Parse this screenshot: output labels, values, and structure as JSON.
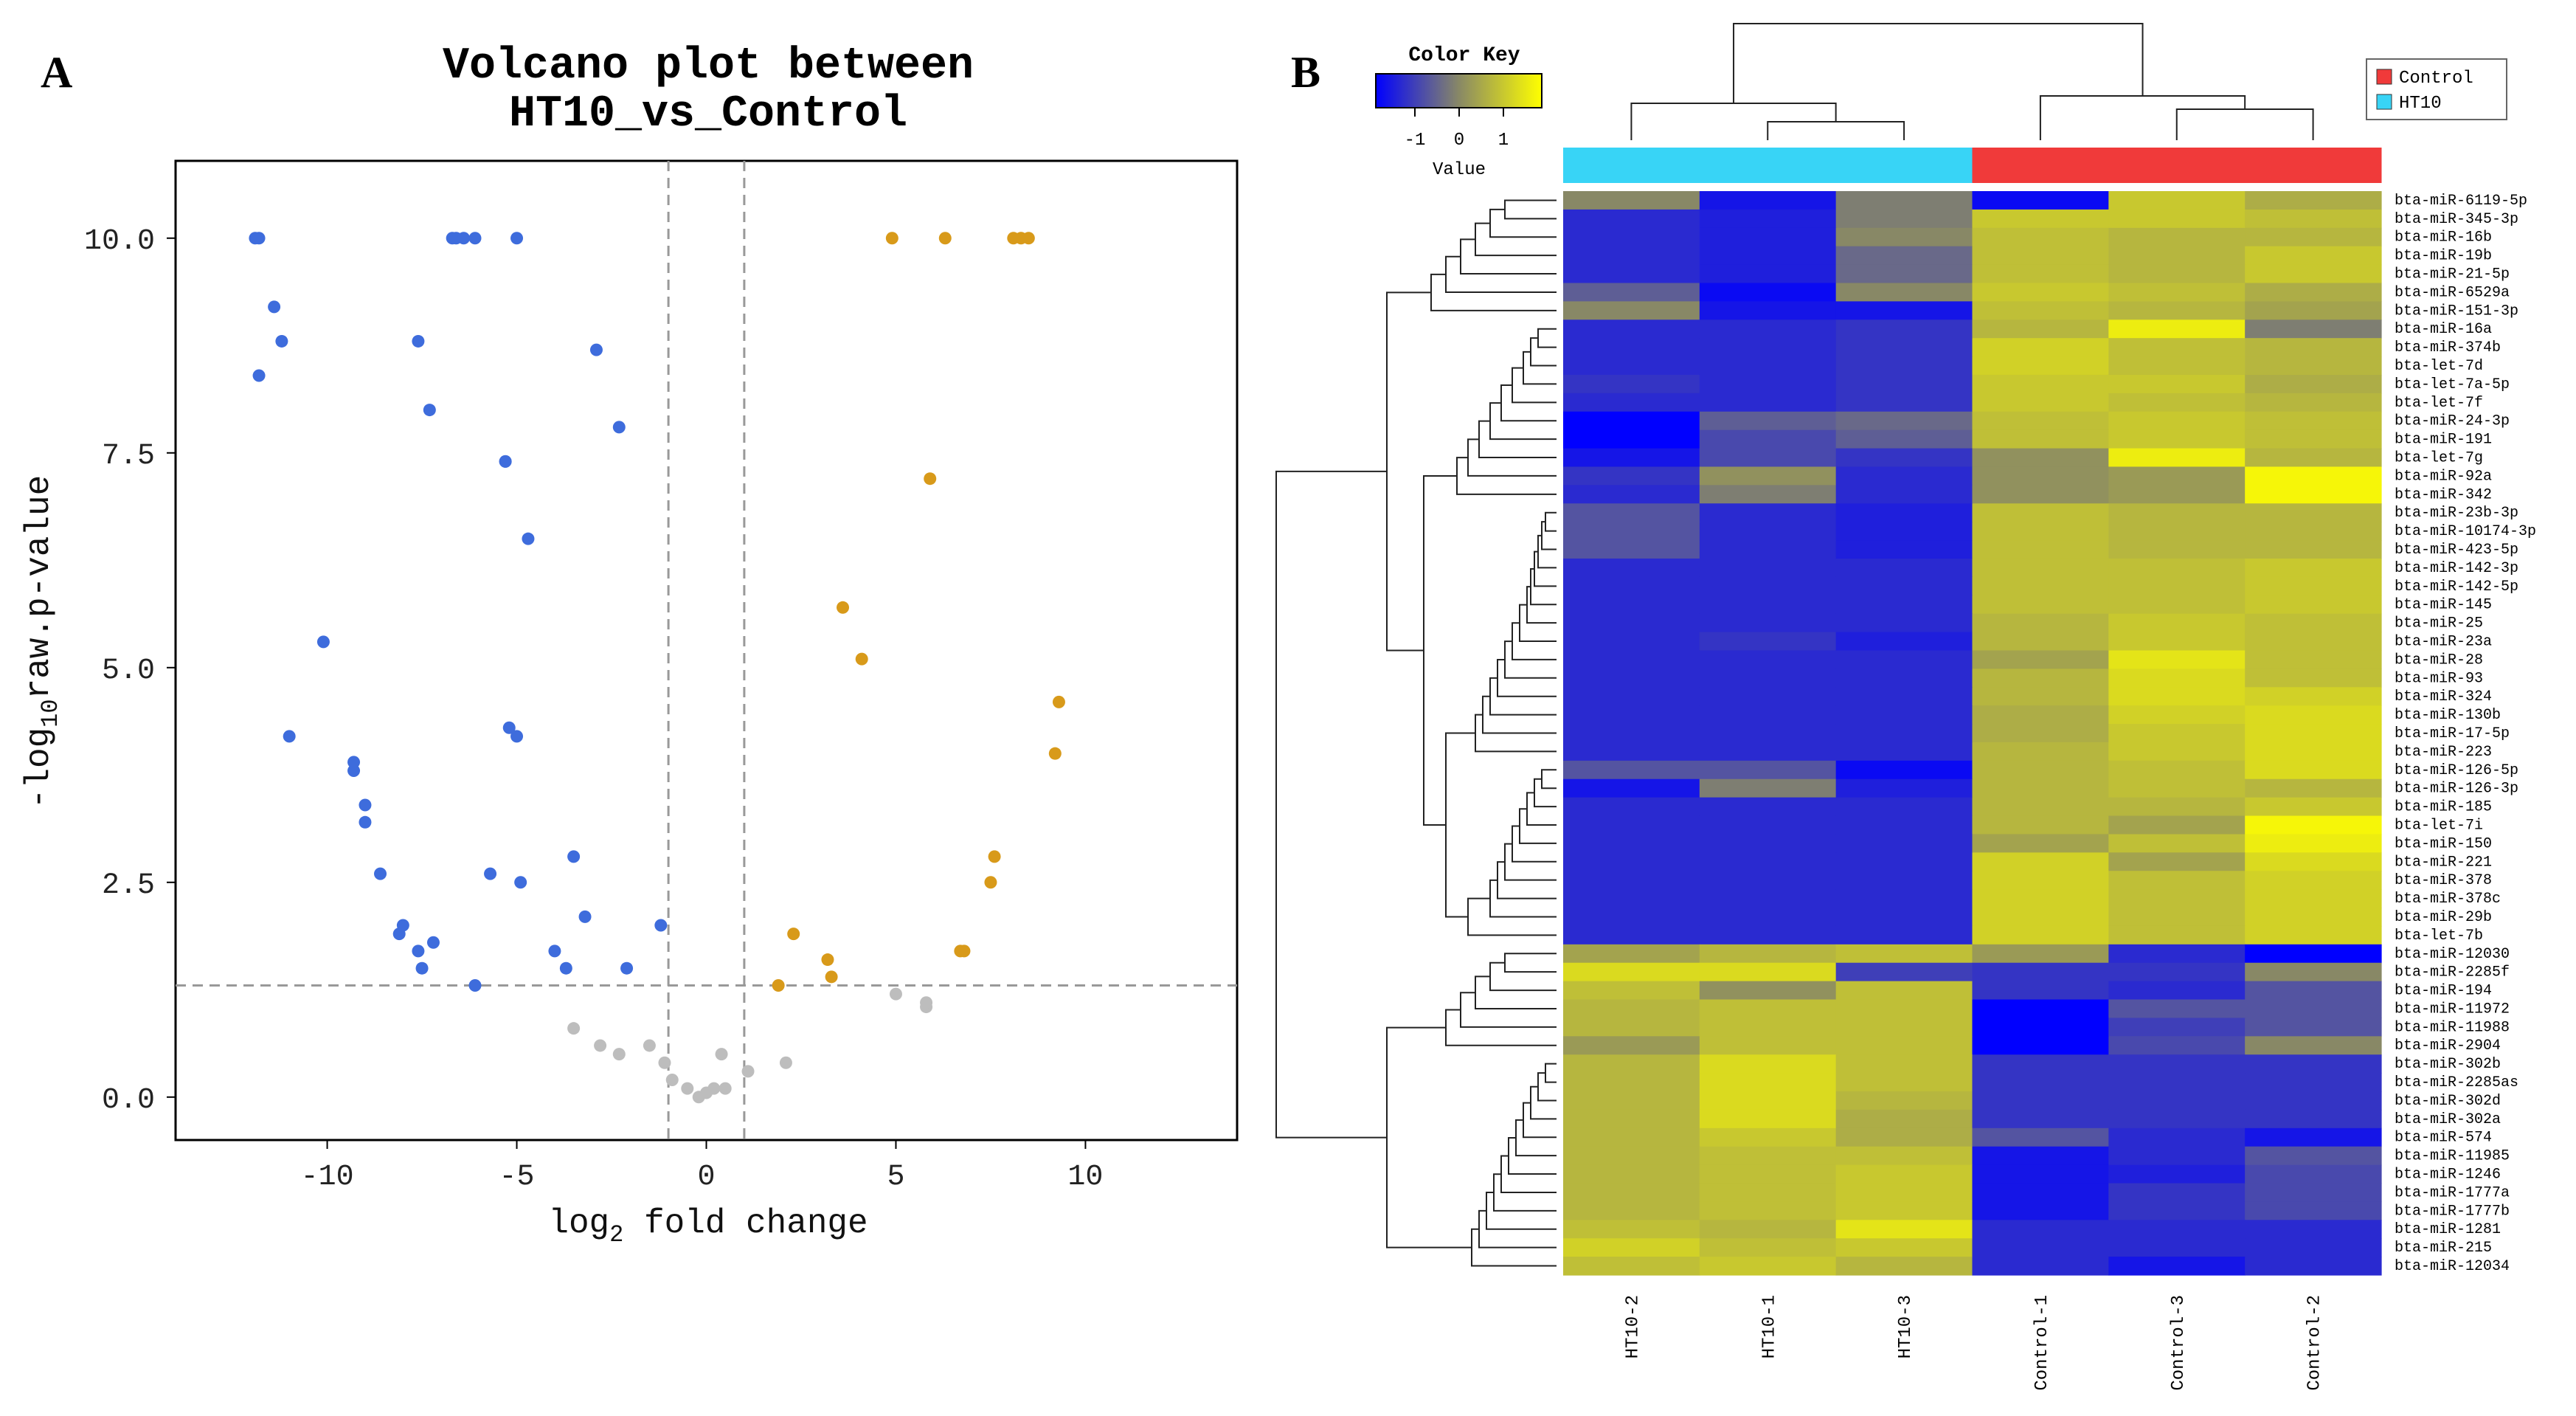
{
  "colors": {
    "down": "#3e6cdc",
    "up": "#d89a1a",
    "ns": "#bdbdbd",
    "control": "#f03a3a",
    "ht10": "#38d4f6",
    "heat_low": "#0000ff",
    "heat_mid": "#888866",
    "heat_high": "#ffff00"
  },
  "panel_a": {
    "letter": "A"
  },
  "panel_b": {
    "letter": "B"
  },
  "chart_data": [
    {
      "type": "scatter",
      "title_line1": "Volcano plot between",
      "title_line2": "HT10_vs_Control",
      "xlabel_prefix": "log",
      "xlabel_sub": "2",
      "xlabel_suffix": " fold change",
      "ylabel_prefix": "-log",
      "ylabel_sub": "10",
      "ylabel_suffix": "raw.p-value",
      "xlim": [
        -14,
        14
      ],
      "ylim": [
        -0.5,
        10.9
      ],
      "xticks": [
        -10,
        -5,
        0,
        5,
        10
      ],
      "xtick_labels": [
        "-10",
        "-5",
        "0",
        "5",
        "10"
      ],
      "yticks": [
        0,
        2.5,
        5,
        7.5,
        10
      ],
      "ytick_labels": [
        "0.0",
        "2.5",
        "5.0",
        "7.5",
        "10.0"
      ],
      "vlines": [
        -1,
        1
      ],
      "hline": 1.3,
      "series": [
        {
          "name": "down",
          "points": [
            [
              -11.9,
              10
            ],
            [
              -11.8,
              10
            ],
            [
              -11.8,
              8.4
            ],
            [
              -11.4,
              9.2
            ],
            [
              -11.2,
              8.8
            ],
            [
              -11,
              4.2
            ],
            [
              -10.1,
              5.3
            ],
            [
              -9.3,
              3.8
            ],
            [
              -9.3,
              3.9
            ],
            [
              -9,
              3.4
            ],
            [
              -9,
              3.2
            ],
            [
              -8.6,
              2.6
            ],
            [
              -8.1,
              1.9
            ],
            [
              -8,
              2
            ],
            [
              -7.6,
              1.7
            ],
            [
              -7.5,
              1.5
            ],
            [
              -7.6,
              8.8
            ],
            [
              -7.3,
              8
            ],
            [
              -7.2,
              1.8
            ],
            [
              -6.7,
              10
            ],
            [
              -6.6,
              10
            ],
            [
              -6.4,
              10
            ],
            [
              -6.1,
              10
            ],
            [
              -6.1,
              1.3
            ],
            [
              -5.7,
              2.6
            ],
            [
              -5.3,
              7.4
            ],
            [
              -5.3,
              7.4
            ],
            [
              -5.2,
              4.3
            ],
            [
              -5,
              4.2
            ],
            [
              -5,
              10
            ],
            [
              -4.9,
              2.5
            ],
            [
              -4.7,
              6.5
            ],
            [
              -4,
              1.7
            ],
            [
              -3.7,
              1.5
            ],
            [
              -3.5,
              2.8
            ],
            [
              -3.2,
              2.1
            ],
            [
              -2.9,
              8.7
            ],
            [
              -2.3,
              7.8
            ],
            [
              -2.1,
              1.5
            ],
            [
              -1.2,
              2
            ]
          ]
        },
        {
          "name": "up",
          "points": [
            [
              1.9,
              1.3
            ],
            [
              2.3,
              1.9
            ],
            [
              3.2,
              1.6
            ],
            [
              3.3,
              1.4
            ],
            [
              3.6,
              5.7
            ],
            [
              4.1,
              5.1
            ],
            [
              4.9,
              10
            ],
            [
              5.9,
              7.2
            ],
            [
              6.3,
              10
            ],
            [
              6.7,
              1.7
            ],
            [
              6.8,
              1.7
            ],
            [
              7.5,
              2.5
            ],
            [
              7.6,
              2.8
            ],
            [
              8.1,
              10
            ],
            [
              8.3,
              10
            ],
            [
              8.5,
              10
            ],
            [
              9.2,
              4
            ],
            [
              9.3,
              4.6
            ]
          ]
        },
        {
          "name": "ns",
          "points": [
            [
              -3.5,
              0.8
            ],
            [
              -2.8,
              0.6
            ],
            [
              -2.3,
              0.5
            ],
            [
              -1.5,
              0.6
            ],
            [
              -1.1,
              0.4
            ],
            [
              -0.9,
              0.2
            ],
            [
              -0.5,
              0.1
            ],
            [
              -0.2,
              0
            ],
            [
              0,
              0.05
            ],
            [
              0.2,
              0.1
            ],
            [
              0.4,
              0.5
            ],
            [
              0.5,
              0.1
            ],
            [
              1.1,
              0.3
            ],
            [
              2.1,
              0.4
            ],
            [
              5,
              1.2
            ],
            [
              5.8,
              1.05
            ],
            [
              5.8,
              1.1
            ]
          ]
        }
      ]
    },
    {
      "type": "heatmap",
      "color_key": {
        "title": "Color Key",
        "label": "Value",
        "ticks": [
          "-1",
          "0",
          "1"
        ]
      },
      "legend": [
        {
          "label": "Control",
          "group": "control"
        },
        {
          "label": "HT10",
          "group": "ht10"
        }
      ],
      "columns": [
        "HT10-2",
        "HT10-1",
        "HT10-3",
        "Control-1",
        "Control-3",
        "Control-2"
      ],
      "column_groups": [
        "ht10",
        "ht10",
        "ht10",
        "control",
        "control",
        "control"
      ],
      "rows": [
        "bta-miR-6119-5p",
        "bta-miR-345-3p",
        "bta-miR-16b",
        "bta-miR-19b",
        "bta-miR-21-5p",
        "bta-miR-6529a",
        "bta-miR-151-3p",
        "bta-miR-16a",
        "bta-miR-374b",
        "bta-let-7d",
        "bta-let-7a-5p",
        "bta-let-7f",
        "bta-miR-24-3p",
        "bta-miR-191",
        "bta-let-7g",
        "bta-miR-92a",
        "bta-miR-342",
        "bta-miR-23b-3p",
        "bta-miR-10174-3p",
        "bta-miR-423-5p",
        "bta-miR-142-3p",
        "bta-miR-142-5p",
        "bta-miR-145",
        "bta-miR-25",
        "bta-miR-23a",
        "bta-miR-28",
        "bta-miR-93",
        "bta-miR-324",
        "bta-miR-130b",
        "bta-miR-17-5p",
        "bta-miR-223",
        "bta-miR-126-5p",
        "bta-miR-126-3p",
        "bta-miR-185",
        "bta-let-7i",
        "bta-miR-150",
        "bta-miR-221",
        "bta-miR-378",
        "bta-miR-378c",
        "bta-miR-29b",
        "bta-let-7b",
        "bta-miR-12030",
        "bta-miR-2285f",
        "bta-miR-194",
        "bta-miR-11972",
        "bta-miR-11988",
        "bta-miR-2904",
        "bta-miR-302b",
        "bta-miR-2285as",
        "bta-miR-302d",
        "bta-miR-302a",
        "bta-miR-574",
        "bta-miR-11985",
        "bta-miR-1246",
        "bta-miR-1777a",
        "bta-miR-1777b",
        "bta-miR-1281",
        "bta-miR-215",
        "bta-miR-12034"
      ],
      "values": [
        [
          0,
          -1.1,
          -0.1,
          -1.2,
          0.7,
          0.4
        ],
        [
          -0.9,
          -1,
          -0.1,
          0.7,
          0.7,
          0.6
        ],
        [
          -0.9,
          -1,
          0,
          0.6,
          0.5,
          0.5
        ],
        [
          -0.9,
          -1,
          -0.3,
          0.6,
          0.5,
          0.7
        ],
        [
          -0.9,
          -1,
          -0.3,
          0.6,
          0.5,
          0.7
        ],
        [
          -0.4,
          -1.2,
          0,
          0.7,
          0.6,
          0.4
        ],
        [
          0,
          -1.1,
          -1.1,
          0.6,
          0.5,
          0.3
        ],
        [
          -0.9,
          -0.9,
          -0.8,
          0.5,
          1.1,
          -0.1
        ],
        [
          -0.9,
          -0.9,
          -0.8,
          0.8,
          0.6,
          0.5
        ],
        [
          -0.9,
          -0.9,
          -0.8,
          0.8,
          0.6,
          0.5
        ],
        [
          -0.8,
          -0.9,
          -0.8,
          0.7,
          0.7,
          0.4
        ],
        [
          -0.9,
          -0.9,
          -0.8,
          0.7,
          0.6,
          0.5
        ],
        [
          -1.3,
          -0.4,
          -0.3,
          0.6,
          0.7,
          0.6
        ],
        [
          -1.3,
          -0.6,
          -0.4,
          0.6,
          0.7,
          0.6
        ],
        [
          -1.1,
          -0.6,
          -0.8,
          0.1,
          1.1,
          0.5
        ],
        [
          -0.8,
          0.1,
          -0.9,
          0.1,
          0.2,
          1.2
        ],
        [
          -0.9,
          -0.1,
          -0.9,
          0.1,
          0.2,
          1.2
        ],
        [
          -0.5,
          -0.9,
          -1,
          0.6,
          0.5,
          0.5
        ],
        [
          -0.5,
          -0.9,
          -1,
          0.6,
          0.5,
          0.5
        ],
        [
          -0.5,
          -0.9,
          -1,
          0.6,
          0.5,
          0.5
        ],
        [
          -0.9,
          -0.9,
          -0.9,
          0.6,
          0.6,
          0.7
        ],
        [
          -0.9,
          -0.9,
          -0.9,
          0.6,
          0.6,
          0.7
        ],
        [
          -0.9,
          -0.9,
          -0.9,
          0.6,
          0.6,
          0.7
        ],
        [
          -0.9,
          -0.9,
          -0.9,
          0.5,
          0.7,
          0.6
        ],
        [
          -0.9,
          -0.8,
          -1,
          0.5,
          0.7,
          0.6
        ],
        [
          -0.9,
          -0.9,
          -0.9,
          0.3,
          1,
          0.6
        ],
        [
          -0.9,
          -0.9,
          -0.9,
          0.5,
          0.9,
          0.6
        ],
        [
          -0.9,
          -0.9,
          -0.9,
          0.5,
          0.9,
          0.8
        ],
        [
          -0.9,
          -0.9,
          -0.9,
          0.4,
          0.8,
          0.9
        ],
        [
          -0.9,
          -0.9,
          -0.9,
          0.4,
          0.7,
          0.9
        ],
        [
          -0.9,
          -0.9,
          -0.9,
          0.5,
          0.7,
          0.9
        ],
        [
          -0.5,
          -0.5,
          -1.2,
          0.5,
          0.6,
          0.9
        ],
        [
          -1.1,
          -0.1,
          -1,
          0.5,
          0.6,
          0.5
        ],
        [
          -0.9,
          -0.9,
          -0.9,
          0.5,
          0.5,
          0.7
        ],
        [
          -0.9,
          -0.9,
          -0.9,
          0.5,
          0.3,
          1.2
        ],
        [
          -0.9,
          -0.9,
          -0.9,
          0.3,
          0.6,
          1.1
        ],
        [
          -0.9,
          -0.9,
          -0.9,
          0.8,
          0.3,
          0.9
        ],
        [
          -0.9,
          -0.9,
          -0.9,
          0.8,
          0.6,
          0.8
        ],
        [
          -0.9,
          -0.9,
          -0.9,
          0.8,
          0.6,
          0.8
        ],
        [
          -0.9,
          -0.9,
          -0.9,
          0.8,
          0.6,
          0.8
        ],
        [
          -0.9,
          -0.9,
          -0.9,
          0.8,
          0.6,
          0.8
        ],
        [
          0.3,
          0.5,
          0.6,
          0.2,
          -0.9,
          -1.3
        ],
        [
          0.9,
          0.9,
          -0.7,
          -0.8,
          -0.8,
          0
        ],
        [
          0.6,
          0.1,
          0.6,
          -0.8,
          -0.9,
          -0.5
        ],
        [
          0.5,
          0.6,
          0.6,
          -1.3,
          -0.5,
          -0.5
        ],
        [
          0.5,
          0.6,
          0.6,
          -1.3,
          -0.7,
          -0.5
        ],
        [
          0.2,
          0.6,
          0.6,
          -1.3,
          -0.6,
          0
        ],
        [
          0.5,
          0.9,
          0.6,
          -0.8,
          -0.8,
          -0.8
        ],
        [
          0.5,
          0.9,
          0.6,
          -0.8,
          -0.8,
          -0.8
        ],
        [
          0.5,
          0.9,
          0.5,
          -0.8,
          -0.8,
          -0.8
        ],
        [
          0.5,
          0.9,
          0.4,
          -0.8,
          -0.8,
          -0.8
        ],
        [
          0.5,
          0.7,
          0.4,
          -0.5,
          -0.9,
          -1.1
        ],
        [
          0.5,
          0.6,
          0.6,
          -1.1,
          -0.9,
          -0.5
        ],
        [
          0.5,
          0.6,
          0.7,
          -1.1,
          -1,
          -0.6
        ],
        [
          0.5,
          0.6,
          0.7,
          -1.1,
          -0.8,
          -0.6
        ],
        [
          0.5,
          0.6,
          0.7,
          -1.1,
          -0.8,
          -0.6
        ],
        [
          0.6,
          0.5,
          1,
          -0.9,
          -0.9,
          -0.9
        ],
        [
          0.8,
          0.6,
          0.7,
          -0.9,
          -0.9,
          -0.9
        ],
        [
          0.6,
          0.7,
          0.5,
          -0.9,
          -1.1,
          -0.9
        ]
      ]
    }
  ]
}
